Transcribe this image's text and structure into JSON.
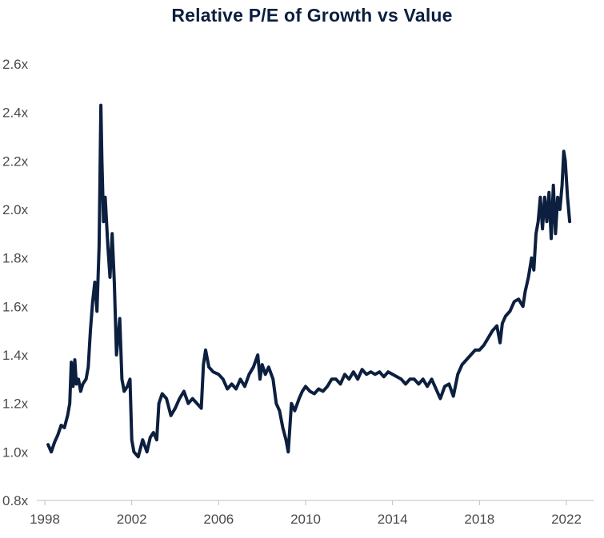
{
  "chart_data": {
    "type": "line",
    "title": "Relative P/E of Growth vs Value",
    "xlabel": "",
    "ylabel": "",
    "x_ticks": [
      "1998",
      "2002",
      "2006",
      "2010",
      "2014",
      "2018",
      "2022"
    ],
    "x_tick_values": [
      1998,
      2002,
      2006,
      2010,
      2014,
      2018,
      2022
    ],
    "y_ticks": [
      "0.8x",
      "1.0x",
      "1.2x",
      "1.4x",
      "1.6x",
      "1.8x",
      "2.0x",
      "2.2x",
      "2.4x",
      "2.6x"
    ],
    "y_tick_values": [
      0.8,
      1.0,
      1.2,
      1.4,
      1.6,
      1.8,
      2.0,
      2.2,
      2.4,
      2.6
    ],
    "xlim": [
      1998,
      2023
    ],
    "ylim": [
      0.8,
      2.6
    ],
    "grid": false,
    "legend": "none",
    "line_color": "#0c1f3f",
    "series": [
      {
        "points": [
          [
            1998.15,
            1.03
          ],
          [
            1998.3,
            1.0
          ],
          [
            1998.45,
            1.04
          ],
          [
            1998.6,
            1.07
          ],
          [
            1998.75,
            1.11
          ],
          [
            1998.9,
            1.1
          ],
          [
            1999.05,
            1.15
          ],
          [
            1999.15,
            1.2
          ],
          [
            1999.22,
            1.37
          ],
          [
            1999.3,
            1.27
          ],
          [
            1999.38,
            1.38
          ],
          [
            1999.45,
            1.28
          ],
          [
            1999.55,
            1.3
          ],
          [
            1999.65,
            1.25
          ],
          [
            1999.75,
            1.28
          ],
          [
            1999.9,
            1.3
          ],
          [
            2000.0,
            1.35
          ],
          [
            2000.1,
            1.5
          ],
          [
            2000.2,
            1.62
          ],
          [
            2000.3,
            1.7
          ],
          [
            2000.4,
            1.58
          ],
          [
            2000.5,
            1.85
          ],
          [
            2000.58,
            2.43
          ],
          [
            2000.63,
            2.2
          ],
          [
            2000.7,
            1.95
          ],
          [
            2000.78,
            2.05
          ],
          [
            2000.9,
            1.85
          ],
          [
            2001.0,
            1.72
          ],
          [
            2001.1,
            1.9
          ],
          [
            2001.2,
            1.7
          ],
          [
            2001.3,
            1.4
          ],
          [
            2001.45,
            1.55
          ],
          [
            2001.55,
            1.3
          ],
          [
            2001.65,
            1.25
          ],
          [
            2001.8,
            1.27
          ],
          [
            2001.92,
            1.3
          ],
          [
            2002.0,
            1.05
          ],
          [
            2002.1,
            1.0
          ],
          [
            2002.3,
            0.98
          ],
          [
            2002.5,
            1.05
          ],
          [
            2002.7,
            1.0
          ],
          [
            2002.85,
            1.06
          ],
          [
            2003.0,
            1.08
          ],
          [
            2003.15,
            1.05
          ],
          [
            2003.25,
            1.2
          ],
          [
            2003.4,
            1.24
          ],
          [
            2003.6,
            1.22
          ],
          [
            2003.8,
            1.15
          ],
          [
            2004.0,
            1.18
          ],
          [
            2004.2,
            1.22
          ],
          [
            2004.4,
            1.25
          ],
          [
            2004.6,
            1.2
          ],
          [
            2004.8,
            1.22
          ],
          [
            2005.0,
            1.2
          ],
          [
            2005.2,
            1.18
          ],
          [
            2005.3,
            1.36
          ],
          [
            2005.4,
            1.42
          ],
          [
            2005.55,
            1.35
          ],
          [
            2005.75,
            1.33
          ],
          [
            2006.0,
            1.32
          ],
          [
            2006.2,
            1.3
          ],
          [
            2006.4,
            1.26
          ],
          [
            2006.6,
            1.28
          ],
          [
            2006.8,
            1.26
          ],
          [
            2007.0,
            1.3
          ],
          [
            2007.2,
            1.27
          ],
          [
            2007.4,
            1.32
          ],
          [
            2007.6,
            1.35
          ],
          [
            2007.8,
            1.4
          ],
          [
            2007.9,
            1.3
          ],
          [
            2008.0,
            1.36
          ],
          [
            2008.15,
            1.32
          ],
          [
            2008.3,
            1.35
          ],
          [
            2008.5,
            1.3
          ],
          [
            2008.65,
            1.2
          ],
          [
            2008.8,
            1.17
          ],
          [
            2008.95,
            1.1
          ],
          [
            2009.1,
            1.05
          ],
          [
            2009.2,
            1.0
          ],
          [
            2009.35,
            1.2
          ],
          [
            2009.5,
            1.17
          ],
          [
            2009.7,
            1.22
          ],
          [
            2009.85,
            1.25
          ],
          [
            2010.0,
            1.27
          ],
          [
            2010.2,
            1.25
          ],
          [
            2010.4,
            1.24
          ],
          [
            2010.6,
            1.26
          ],
          [
            2010.8,
            1.25
          ],
          [
            2011.0,
            1.27
          ],
          [
            2011.2,
            1.3
          ],
          [
            2011.4,
            1.3
          ],
          [
            2011.6,
            1.28
          ],
          [
            2011.8,
            1.32
          ],
          [
            2012.0,
            1.3
          ],
          [
            2012.2,
            1.33
          ],
          [
            2012.4,
            1.3
          ],
          [
            2012.6,
            1.34
          ],
          [
            2012.8,
            1.32
          ],
          [
            2013.0,
            1.33
          ],
          [
            2013.2,
            1.32
          ],
          [
            2013.4,
            1.33
          ],
          [
            2013.6,
            1.31
          ],
          [
            2013.8,
            1.33
          ],
          [
            2014.0,
            1.32
          ],
          [
            2014.2,
            1.31
          ],
          [
            2014.4,
            1.3
          ],
          [
            2014.6,
            1.28
          ],
          [
            2014.8,
            1.3
          ],
          [
            2015.0,
            1.3
          ],
          [
            2015.2,
            1.28
          ],
          [
            2015.4,
            1.3
          ],
          [
            2015.6,
            1.27
          ],
          [
            2015.8,
            1.3
          ],
          [
            2016.0,
            1.26
          ],
          [
            2016.2,
            1.22
          ],
          [
            2016.4,
            1.27
          ],
          [
            2016.6,
            1.28
          ],
          [
            2016.8,
            1.23
          ],
          [
            2017.0,
            1.32
          ],
          [
            2017.2,
            1.36
          ],
          [
            2017.4,
            1.38
          ],
          [
            2017.6,
            1.4
          ],
          [
            2017.8,
            1.42
          ],
          [
            2018.0,
            1.42
          ],
          [
            2018.2,
            1.44
          ],
          [
            2018.4,
            1.47
          ],
          [
            2018.6,
            1.5
          ],
          [
            2018.8,
            1.52
          ],
          [
            2018.95,
            1.45
          ],
          [
            2019.05,
            1.53
          ],
          [
            2019.2,
            1.56
          ],
          [
            2019.4,
            1.58
          ],
          [
            2019.6,
            1.62
          ],
          [
            2019.8,
            1.63
          ],
          [
            2020.0,
            1.6
          ],
          [
            2020.1,
            1.66
          ],
          [
            2020.25,
            1.72
          ],
          [
            2020.4,
            1.8
          ],
          [
            2020.5,
            1.75
          ],
          [
            2020.6,
            1.9
          ],
          [
            2020.7,
            1.95
          ],
          [
            2020.8,
            2.05
          ],
          [
            2020.9,
            1.92
          ],
          [
            2021.0,
            2.05
          ],
          [
            2021.1,
            1.95
          ],
          [
            2021.2,
            2.07
          ],
          [
            2021.3,
            1.88
          ],
          [
            2021.4,
            2.1
          ],
          [
            2021.5,
            1.9
          ],
          [
            2021.6,
            2.05
          ],
          [
            2021.7,
            2.0
          ],
          [
            2021.8,
            2.1
          ],
          [
            2021.88,
            2.24
          ],
          [
            2021.95,
            2.2
          ],
          [
            2022.05,
            2.05
          ],
          [
            2022.15,
            1.95
          ]
        ]
      }
    ]
  }
}
